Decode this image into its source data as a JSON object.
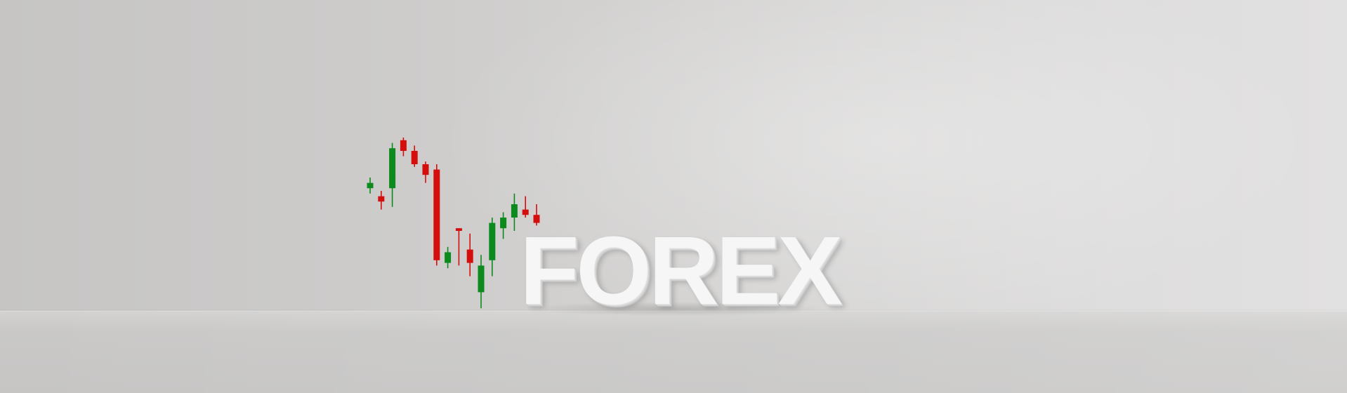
{
  "scene": {
    "headline": "FOREX",
    "colors": {
      "bullish": "#0d8a1d",
      "bearish": "#d40d0d",
      "wall": "#d0cfce",
      "floor": "#c8c7c6",
      "letters": "#f6f6f6"
    }
  },
  "candles": [
    {
      "direction": "up",
      "open": 0.61,
      "close": 0.63,
      "high": 0.65,
      "low": 0.59
    },
    {
      "direction": "down",
      "open": 0.58,
      "close": 0.56,
      "high": 0.6,
      "low": 0.53
    },
    {
      "direction": "up",
      "open": 0.61,
      "close": 0.76,
      "high": 0.78,
      "low": 0.54
    },
    {
      "direction": "down",
      "open": 0.79,
      "close": 0.75,
      "high": 0.8,
      "low": 0.73
    },
    {
      "direction": "down",
      "open": 0.75,
      "close": 0.7,
      "high": 0.77,
      "low": 0.69
    },
    {
      "direction": "down",
      "open": 0.7,
      "close": 0.66,
      "high": 0.71,
      "low": 0.63
    },
    {
      "direction": "down",
      "open": 0.68,
      "close": 0.34,
      "high": 0.7,
      "low": 0.32
    },
    {
      "direction": "up",
      "open": 0.33,
      "close": 0.37,
      "high": 0.39,
      "low": 0.31
    },
    {
      "direction": "down",
      "open": 0.46,
      "close": 0.45,
      "high": 0.46,
      "low": 0.32
    },
    {
      "direction": "down",
      "open": 0.38,
      "close": 0.33,
      "high": 0.44,
      "low": 0.28
    },
    {
      "direction": "up",
      "open": 0.22,
      "close": 0.32,
      "high": 0.36,
      "low": 0.16
    },
    {
      "direction": "up",
      "open": 0.34,
      "close": 0.48,
      "high": 0.5,
      "low": 0.28
    },
    {
      "direction": "up",
      "open": 0.46,
      "close": 0.5,
      "high": 0.52,
      "low": 0.42
    },
    {
      "direction": "up",
      "open": 0.5,
      "close": 0.55,
      "high": 0.59,
      "low": 0.45
    },
    {
      "direction": "down",
      "open": 0.53,
      "close": 0.51,
      "high": 0.58,
      "low": 0.5
    },
    {
      "direction": "down",
      "open": 0.51,
      "close": 0.48,
      "high": 0.55,
      "low": 0.47
    }
  ]
}
